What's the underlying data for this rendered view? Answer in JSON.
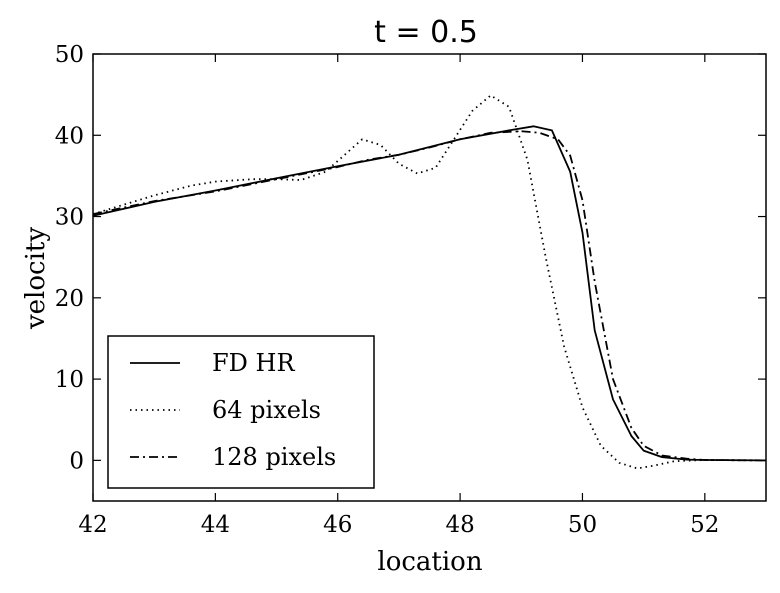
{
  "chart_data": {
    "type": "line",
    "title": "t = 0.5",
    "xlabel": "location",
    "ylabel": "velocity",
    "xlim": [
      42,
      53
    ],
    "ylim": [
      -5,
      50
    ],
    "xticks": [
      42,
      44,
      46,
      48,
      50,
      52
    ],
    "yticks": [
      0,
      10,
      20,
      30,
      40,
      50
    ],
    "grid": false,
    "legend_position": "lower-left",
    "series": [
      {
        "name": "FD HR",
        "style": "solid",
        "color": "#000000",
        "points": [
          [
            42,
            30.1
          ],
          [
            43,
            31.8
          ],
          [
            44,
            33.2
          ],
          [
            45,
            34.7
          ],
          [
            46,
            36.2
          ],
          [
            47,
            37.6
          ],
          [
            48,
            39.5
          ],
          [
            48.8,
            40.6
          ],
          [
            49.2,
            41.1
          ],
          [
            49.5,
            40.6
          ],
          [
            49.8,
            35.5
          ],
          [
            50.0,
            28
          ],
          [
            50.2,
            16
          ],
          [
            50.5,
            7.5
          ],
          [
            50.8,
            3
          ],
          [
            51.0,
            1.2
          ],
          [
            51.3,
            0.4
          ],
          [
            51.7,
            0.1
          ],
          [
            52,
            0.05
          ],
          [
            53,
            0
          ]
        ]
      },
      {
        "name": "64 pixels",
        "style": "dotted",
        "color": "#000000",
        "points": [
          [
            42,
            30.3
          ],
          [
            43,
            32.6
          ],
          [
            43.6,
            33.8
          ],
          [
            44,
            34.3
          ],
          [
            44.6,
            34.6
          ],
          [
            45,
            34.6
          ],
          [
            45.4,
            34.5
          ],
          [
            45.8,
            35.5
          ],
          [
            46.1,
            37.5
          ],
          [
            46.4,
            39.5
          ],
          [
            46.7,
            38.8
          ],
          [
            47.0,
            36.5
          ],
          [
            47.3,
            35.3
          ],
          [
            47.6,
            36
          ],
          [
            47.9,
            39.5
          ],
          [
            48.2,
            43
          ],
          [
            48.5,
            44.9
          ],
          [
            48.8,
            43.5
          ],
          [
            49.1,
            37
          ],
          [
            49.4,
            25
          ],
          [
            49.7,
            14
          ],
          [
            50.0,
            6.5
          ],
          [
            50.3,
            1.8
          ],
          [
            50.6,
            -0.3
          ],
          [
            50.9,
            -1.0
          ],
          [
            51.2,
            -0.6
          ],
          [
            51.5,
            -0.1
          ],
          [
            52,
            0.05
          ],
          [
            53,
            0
          ]
        ]
      },
      {
        "name": "128 pixels",
        "style": "dashdot",
        "color": "#000000",
        "points": [
          [
            42,
            30.3
          ],
          [
            43,
            31.9
          ],
          [
            44,
            33.1
          ],
          [
            45,
            34.6
          ],
          [
            46,
            36.1
          ],
          [
            46.5,
            37
          ],
          [
            47,
            37.6
          ],
          [
            47.5,
            38.5
          ],
          [
            48,
            39.5
          ],
          [
            48.5,
            40.3
          ],
          [
            49.0,
            40.5
          ],
          [
            49.3,
            40.3
          ],
          [
            49.6,
            39.5
          ],
          [
            49.8,
            37.5
          ],
          [
            50.0,
            32
          ],
          [
            50.2,
            22
          ],
          [
            50.5,
            10
          ],
          [
            50.8,
            4
          ],
          [
            51.0,
            1.8
          ],
          [
            51.3,
            0.6
          ],
          [
            51.7,
            0.2
          ],
          [
            52,
            0.05
          ],
          [
            53,
            0
          ]
        ]
      }
    ]
  }
}
